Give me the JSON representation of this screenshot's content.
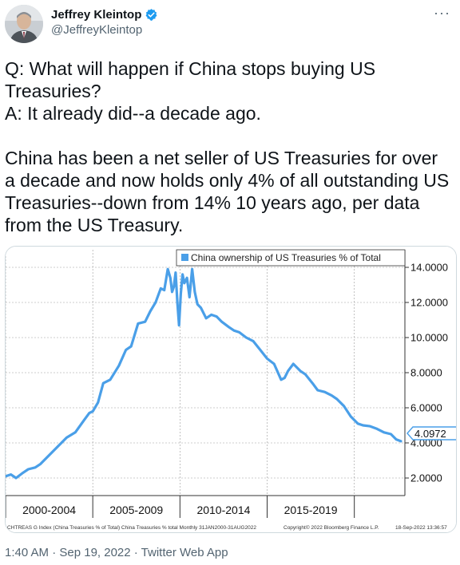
{
  "tweet": {
    "author_name": "Jeffrey Kleintop",
    "handle": "@JeffreyKleintop",
    "verified_icon": "verified-badge-icon",
    "more_icon": "more-options-icon",
    "text_lines": [
      "Q: What will happen if China stops buying US Treasuries?",
      "A: It already did--a decade ago."
    ],
    "text_paragraph2": "China has been a net seller of US Treasuries for over a decade and now holds only 4% of all outstanding US Treasuries--down from 14% 10 years ago, per data from the US Treasury.",
    "timestamp": "1:40 AM · Sep 19, 2022 · Twitter Web App"
  },
  "chart_data": {
    "type": "line",
    "legend": "China ownership of US Treasuries % of Total",
    "ylim": [
      1.0,
      15.0
    ],
    "y_ticks": [
      "2.0000",
      "4.0000",
      "6.0000",
      "8.0000",
      "10.0000",
      "12.0000",
      "14.0000"
    ],
    "x_period_labels": [
      "2000-2004",
      "2005-2009",
      "2010-2014",
      "2015-2019"
    ],
    "last_value": "4.0972",
    "footer_left": "CHTREAS G Index (China Treasuries % of Total) China Treasuries % total  Monthly 31JAN2000-31AUG2022",
    "footer_mid": "Copyright© 2022 Bloomberg Finance L.P.",
    "footer_right": "18-Sep-2022 13:36:57",
    "line_color": "#4a9fe8",
    "series": [
      {
        "x": [
          2000.0,
          2000.3,
          2000.6,
          2001.0,
          2001.3,
          2001.7,
          2002.0,
          2002.5,
          2003.0,
          2003.5,
          2004.0,
          2004.5,
          2004.8,
          2005.0,
          2005.3,
          2005.6,
          2006.0,
          2006.5,
          2006.9,
          2007.2,
          2007.6,
          2008.0,
          2008.3,
          2008.6,
          2008.9,
          2009.1,
          2009.3,
          2009.45,
          2009.55,
          2009.65,
          2009.75,
          2009.85,
          2009.95,
          2010.05,
          2010.15,
          2010.25,
          2010.4,
          2010.55,
          2010.7,
          2010.85,
          2011.0,
          2011.2,
          2011.5,
          2011.8,
          2012.1,
          2012.4,
          2012.8,
          2013.1,
          2013.4,
          2013.8,
          2014.2,
          2014.6,
          2015.0,
          2015.4,
          2015.8,
          2016.0,
          2016.2,
          2016.5,
          2016.9,
          2017.2,
          2017.6,
          2017.9,
          2018.3,
          2018.7,
          2019.0,
          2019.4,
          2019.8,
          2020.2,
          2020.5,
          2020.9,
          2021.3,
          2021.7,
          2022.1,
          2022.4,
          2022.67
        ],
        "y": [
          2.1,
          2.2,
          2.0,
          2.3,
          2.5,
          2.6,
          2.8,
          3.3,
          3.8,
          4.3,
          4.6,
          5.3,
          5.7,
          5.8,
          6.3,
          7.4,
          7.6,
          8.4,
          9.3,
          9.5,
          10.8,
          10.9,
          11.5,
          12.0,
          12.8,
          12.7,
          13.9,
          13.4,
          12.6,
          12.9,
          13.7,
          12.0,
          10.7,
          12.5,
          13.6,
          13.1,
          13.4,
          12.3,
          13.9,
          12.6,
          11.9,
          11.7,
          11.1,
          11.3,
          11.2,
          10.9,
          10.6,
          10.4,
          10.3,
          10.0,
          9.8,
          9.3,
          8.8,
          8.5,
          7.6,
          7.7,
          8.1,
          8.5,
          8.1,
          7.9,
          7.4,
          7.0,
          6.9,
          6.7,
          6.5,
          6.1,
          5.5,
          5.1,
          5.0,
          4.95,
          4.8,
          4.6,
          4.5,
          4.2,
          4.0972
        ]
      }
    ]
  }
}
